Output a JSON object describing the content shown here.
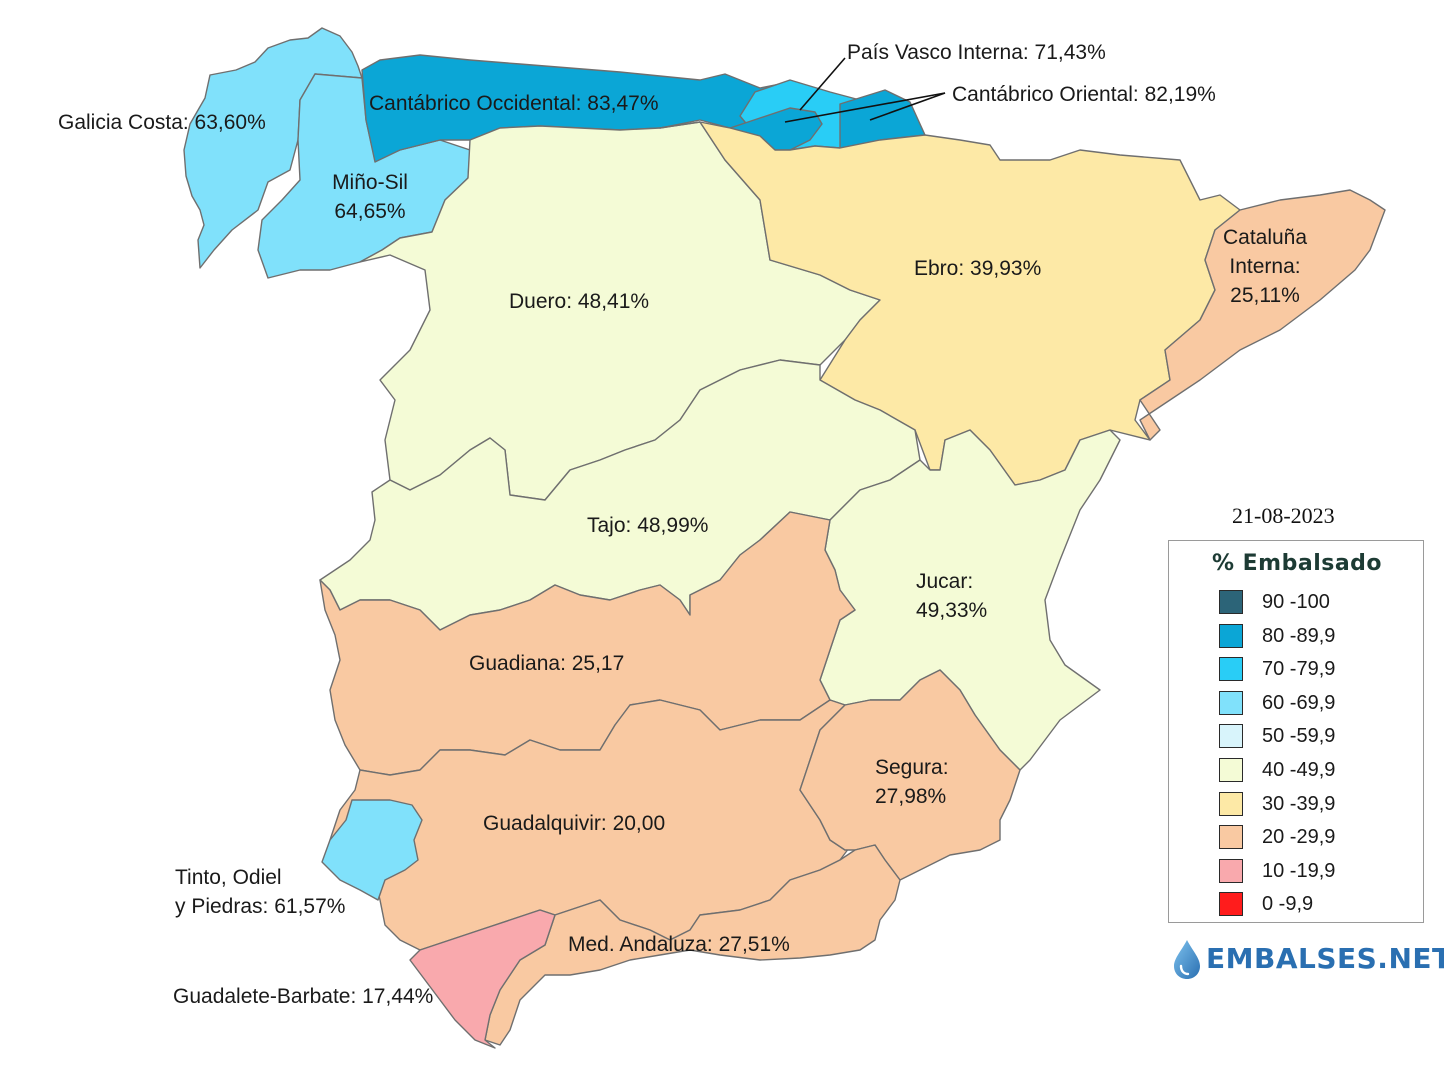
{
  "date": "21-08-2023",
  "legend": {
    "title": "% Embalsado",
    "ranges": [
      {
        "label": "90 -100",
        "color": "#2c6478"
      },
      {
        "label": "80 -89,9",
        "color": "#0ba6d6"
      },
      {
        "label": "70 -79,9",
        "color": "#29cdf6"
      },
      {
        "label": "60 -69,9",
        "color": "#80e1fb"
      },
      {
        "label": "50 -59,9",
        "color": "#d8f4fb"
      },
      {
        "label": "40 -49,9",
        "color": "#f4fbd6"
      },
      {
        "label": "30 -39,9",
        "color": "#fde9a6"
      },
      {
        "label": "20 -29,9",
        "color": "#f9c9a2"
      },
      {
        "label": "10 -19,9",
        "color": "#f9a9ad"
      },
      {
        "label": "0 -9,9",
        "color": "#ff1c1c"
      }
    ]
  },
  "regions": {
    "galicia_costa": {
      "label": "Galicia Costa: 63,60%",
      "value": 63.6
    },
    "mino_sil": {
      "label_line1": "Miño-Sil",
      "label_line2": "64,65%",
      "value": 64.65
    },
    "cantabrico_occidental": {
      "label": "Cantábrico Occidental: 83,47%",
      "value": 83.47
    },
    "pais_vasco_interna": {
      "label": "País Vasco Interna: 71,43%",
      "value": 71.43
    },
    "cantabrico_oriental": {
      "label": "Cantábrico Oriental: 82,19%",
      "value": 82.19
    },
    "duero": {
      "label": "Duero: 48,41%",
      "value": 48.41
    },
    "ebro": {
      "label": "Ebro: 39,93%",
      "value": 39.93
    },
    "cataluna_interna": {
      "label_line1": "Cataluña",
      "label_line2": "Interna:",
      "label_line3": "25,11%",
      "value": 25.11
    },
    "tajo": {
      "label": "Tajo: 48,99%",
      "value": 48.99
    },
    "jucar": {
      "label_line1": "Jucar:",
      "label_line2": "49,33%",
      "value": 49.33
    },
    "guadiana": {
      "label": "Guadiana: 25,17",
      "value": 25.17
    },
    "segura": {
      "label_line1": "Segura:",
      "label_line2": "27,98%",
      "value": 27.98
    },
    "guadalquivir": {
      "label": "Guadalquivir: 20,00",
      "value": 20.0
    },
    "tinto_odiel_piedras": {
      "label_line1": "Tinto, Odiel",
      "label_line2": "y Piedras: 61,57%",
      "value": 61.57
    },
    "med_andaluza": {
      "label": "Med. Andaluza: 27,51%",
      "value": 27.51
    },
    "guadalete_barbate": {
      "label": "Guadalete-Barbate: 17,44%",
      "value": 17.44
    }
  },
  "brand": {
    "name": "EMBALSES.NET",
    "color": "#2a6fb1"
  }
}
